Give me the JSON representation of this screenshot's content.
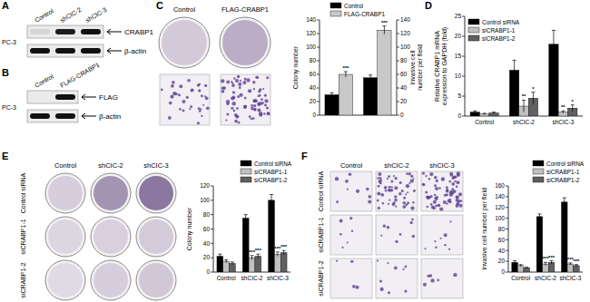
{
  "panel_labels": [
    "A",
    "B",
    "C",
    "D",
    "E",
    "F"
  ],
  "blots": [
    {
      "cell_line": "PC-3",
      "lanes": [
        "Control",
        "shCIC-2",
        "shCIC-3"
      ],
      "rows": [
        {
          "label": "CRABP1",
          "bands": [
            0.1,
            0.95,
            1
          ]
        },
        {
          "label": "β-actin",
          "bands": [
            1,
            1,
            1
          ]
        }
      ]
    },
    {
      "cell_line": "PC-3",
      "lanes": [
        "Control",
        "FLAG-CRABP1"
      ],
      "rows": [
        {
          "label": "FLAG",
          "bands": [
            0,
            1
          ]
        },
        {
          "label": "β-actin",
          "bands": [
            1,
            1
          ]
        }
      ]
    }
  ],
  "images": {
    "C": [
      "Control",
      "FLAG-CRABP1"
    ],
    "E": {
      "rows": [
        "Control siRNA",
        "siCRABP1-1",
        "siCRABP1-2"
      ],
      "columns": [
        "Control",
        "shCIC-2",
        "shCIC-3"
      ]
    },
    "F": {
      "rows": [
        "Control siRNA",
        "siCRABP1-1",
        "siCRABP1-2"
      ],
      "columns": [
        "Control",
        "shCIC-2",
        "shCIC-3"
      ]
    }
  },
  "chart_data": [
    {
      "type": "bar",
      "ylabel": "Colony number",
      "y2label": "Invasive cell number per field",
      "categories": [
        null,
        null
      ],
      "series": [
        {
          "name": "Control",
          "color": "#000000",
          "values": [
            30,
            55
          ],
          "errors": [
            3,
            4
          ]
        },
        {
          "name": "FLAG-CRABP1",
          "color": "#c8c8c8",
          "values": [
            60,
            125
          ],
          "errors": [
            4,
            6
          ]
        }
      ],
      "ylim": [
        0,
        140
      ],
      "yticks": [
        0,
        20,
        40,
        60,
        80,
        100,
        120,
        140
      ],
      "y2lim": [
        0,
        140
      ],
      "y2ticks": [
        0,
        20,
        40,
        60,
        80,
        100,
        120,
        140
      ],
      "legend": "top",
      "annotations": [
        {
          "text": "***",
          "category": 0,
          "series": 1
        },
        {
          "text": "***",
          "category": 1,
          "series": 1
        }
      ]
    },
    {
      "type": "bar",
      "ylabel": "Relative CRABP1 mRNA expression to GAPDH (fold)",
      "categories": [
        "Control",
        "shCIC-2",
        "shCIC-3"
      ],
      "series": [
        {
          "name": "Control siRNA",
          "color": "#000000",
          "values": [
            1,
            11.5,
            18
          ],
          "errors": [
            0.3,
            2.5,
            3.5
          ]
        },
        {
          "name": "siCRABP1-1",
          "color": "#c0c0c0",
          "values": [
            0.5,
            2.5,
            1
          ],
          "errors": [
            0.2,
            1.5,
            0.3
          ]
        },
        {
          "name": "siCRABP1-2",
          "color": "#606060",
          "values": [
            0.8,
            4.5,
            2
          ],
          "errors": [
            0.2,
            1.5,
            0.8
          ]
        }
      ],
      "ylim": [
        0,
        25
      ],
      "yticks": [
        0,
        5,
        10,
        15,
        20,
        25
      ],
      "legend": "upper left",
      "annotations": [
        {
          "text": "**",
          "category": 1,
          "series": 1
        },
        {
          "text": "*",
          "category": 1,
          "series": 2
        },
        {
          "text": "**",
          "category": 2,
          "series": 1
        },
        {
          "text": "*",
          "category": 2,
          "series": 2
        }
      ]
    },
    {
      "type": "bar",
      "ylabel": "Colony number",
      "categories": [
        "Control",
        "shCIC-2",
        "shCIC-3"
      ],
      "series": [
        {
          "name": "Control siRNA",
          "color": "#000000",
          "values": [
            22,
            75,
            100
          ],
          "errors": [
            3,
            5,
            8
          ]
        },
        {
          "name": "siCRABP1-1",
          "color": "#c0c0c0",
          "values": [
            15,
            20,
            25
          ],
          "errors": [
            2,
            3,
            3
          ]
        },
        {
          "name": "siCRABP1-2",
          "color": "#606060",
          "values": [
            12,
            22,
            27
          ],
          "errors": [
            2,
            3,
            3
          ]
        }
      ],
      "ylim": [
        0,
        120
      ],
      "yticks": [
        0,
        20,
        40,
        60,
        80,
        100,
        120
      ],
      "legend": "upper right",
      "annotations": [
        {
          "text": "***",
          "category": 1,
          "series": 1
        },
        {
          "text": "***",
          "category": 1,
          "series": 2
        },
        {
          "text": "***",
          "category": 2,
          "series": 1
        },
        {
          "text": "***",
          "category": 2,
          "series": 2
        }
      ]
    },
    {
      "type": "bar",
      "ylabel": "Invasive cell number per field",
      "categories": [
        "Control",
        "shCIC-2",
        "shCIC-3"
      ],
      "series": [
        {
          "name": "Control siRNA",
          "color": "#000000",
          "values": [
            18,
            103,
            130
          ],
          "errors": [
            3,
            5,
            8
          ]
        },
        {
          "name": "siCRABP1-1",
          "color": "#c0c0c0",
          "values": [
            12,
            15,
            15
          ],
          "errors": [
            2,
            3,
            2
          ]
        },
        {
          "name": "siCRABP1-2",
          "color": "#606060",
          "values": [
            8,
            18,
            12
          ],
          "errors": [
            1,
            3,
            2
          ]
        }
      ],
      "ylim": [
        0,
        160
      ],
      "yticks": [
        0,
        20,
        40,
        60,
        80,
        100,
        120,
        140,
        160
      ],
      "legend": "upper right",
      "annotations": [
        {
          "text": "***",
          "category": 1,
          "series": 1
        },
        {
          "text": "***",
          "category": 1,
          "series": 2
        },
        {
          "text": "***",
          "category": 2,
          "series": 1
        },
        {
          "text": "***",
          "category": 2,
          "series": 2
        }
      ]
    }
  ]
}
